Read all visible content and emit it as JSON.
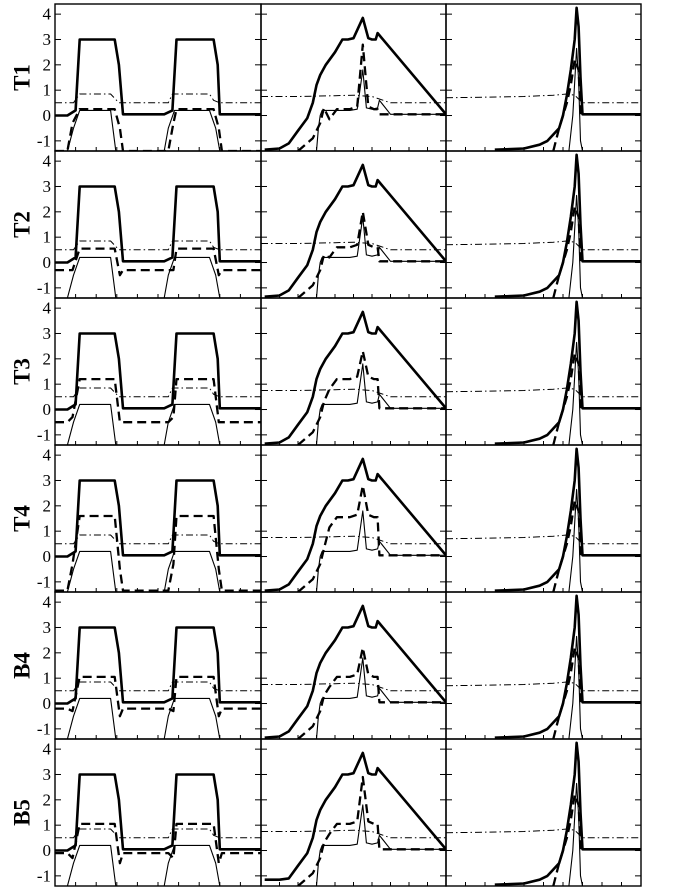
{
  "chart_data": {
    "type": "line",
    "title": "",
    "xlabel": "",
    "ylabel": "",
    "layout": {
      "rows": 6,
      "columns": 3
    },
    "row_labels": [
      "T1",
      "T2",
      "T3",
      "T4",
      "B4",
      "B5"
    ],
    "ylim": [
      -1.4,
      4.4
    ],
    "xlim": [
      0,
      100
    ],
    "y_ticks": [
      -1,
      0,
      1,
      2,
      3,
      4
    ],
    "y_tick_labels": [
      "-1",
      "0",
      "1",
      "2",
      "3",
      "4"
    ],
    "grid": false,
    "legend": "none",
    "series_styles": [
      {
        "key": "bold",
        "style": "solid",
        "weight": "thick",
        "color": "#000000"
      },
      {
        "key": "dashed",
        "style": "dashed",
        "weight": "thick",
        "color": "#000000"
      },
      {
        "key": "thin",
        "style": "solid",
        "weight": "thin",
        "color": "#000000"
      },
      {
        "key": "dashdot",
        "style": "dash-dot",
        "weight": "thin",
        "color": "#000000"
      }
    ],
    "columns": [
      {
        "description": "two rectangular pulses",
        "bold": {
          "x": [
            0,
            6,
            10,
            12,
            27,
            29,
            31,
            33,
            35,
            53,
            57,
            59,
            75,
            77,
            79,
            80,
            100
          ],
          "y": [
            0,
            0,
            0.2,
            3,
            3,
            3,
            2,
            0.05,
            0.05,
            0.05,
            0.2,
            3,
            3,
            3,
            2,
            0.05,
            0.05
          ]
        },
        "thin": {
          "x": [
            6,
            9,
            12,
            27,
            29.5,
            53,
            55,
            58,
            75,
            78,
            80
          ],
          "y": [
            -1.4,
            -0.5,
            0.2,
            0.2,
            -1.4,
            -1.4,
            -0.5,
            0.2,
            0.2,
            -0.5,
            -1.4
          ]
        },
        "dashdot": {
          "x": [
            0,
            9,
            12,
            27,
            31,
            33,
            53,
            55,
            57,
            75,
            77,
            80,
            100
          ],
          "y": [
            0.5,
            0.5,
            0.85,
            0.85,
            0.5,
            0.5,
            0.5,
            0.5,
            0.85,
            0.85,
            0.6,
            0.5,
            0.5
          ]
        },
        "dashed_plateau": [
          0.25,
          0.55,
          1.2,
          1.6,
          1.05,
          1.05
        ],
        "dashed_floor": [
          -1.4,
          -0.3,
          -0.5,
          -1.35,
          -0.2,
          -0.1
        ]
      },
      {
        "description": "build-up with central spike",
        "bold": {
          "x": [
            2,
            10,
            15,
            20,
            25,
            28,
            30,
            32,
            35,
            40,
            44,
            46,
            47,
            50,
            55,
            58,
            60,
            62,
            63,
            100
          ],
          "y": [
            -1.35,
            -1.3,
            -1.1,
            -0.6,
            -0.1,
            0.5,
            1.2,
            1.6,
            2,
            2.5,
            3,
            3,
            3,
            3.05,
            3.85,
            3.05,
            3,
            3,
            3.25,
            0.05
          ]
        },
        "thin": {
          "x": [
            30,
            31,
            32,
            33,
            40,
            48,
            52,
            55,
            57,
            60,
            63,
            64,
            70,
            100
          ],
          "y": [
            -1.4,
            -0.5,
            0,
            0.2,
            0.2,
            0.2,
            0.25,
            1.8,
            0.3,
            0.25,
            0.3,
            0.6,
            0.05,
            0.05
          ]
        },
        "dashdot": {
          "x": [
            0,
            20,
            40,
            50,
            60,
            62,
            64,
            70,
            100
          ],
          "y": [
            0.75,
            0.75,
            0.78,
            0.8,
            0.75,
            0.7,
            0.65,
            0.5,
            0.5
          ]
        },
        "dashed_peak": [
          2.8,
          2.0,
          2.3,
          2.8,
          2.2,
          2.9
        ],
        "dashed_plateau": [
          0.25,
          0.6,
          1.2,
          1.55,
          1.05,
          1.05
        ]
      },
      {
        "description": "narrow tall peak near right edge",
        "bold": {
          "x": [
            25,
            40,
            48,
            52,
            58,
            60,
            62,
            64,
            66,
            67,
            68,
            69,
            70,
            100
          ],
          "y": [
            -1.35,
            -1.3,
            -1.15,
            -1,
            -0.5,
            0,
            0.8,
            1.8,
            3,
            4.25,
            3.5,
            1.5,
            0.05,
            0.05
          ]
        },
        "dashed": {
          "x": [
            55,
            58,
            62,
            64,
            66,
            68,
            69,
            100
          ],
          "y": [
            -1.4,
            -0.5,
            0.5,
            1.2,
            2.2,
            1.8,
            0.05,
            0.05
          ]
        },
        "thin": {
          "x": [
            63,
            65,
            67,
            68,
            69,
            70
          ],
          "y": [
            -1.4,
            0,
            2.65,
            1.4,
            -1,
            -1.4
          ]
        },
        "dashdot": {
          "x": [
            0,
            40,
            55,
            62,
            66,
            70,
            100
          ],
          "y": [
            0.7,
            0.75,
            0.8,
            0.85,
            0.8,
            0.5,
            0.5
          ]
        }
      }
    ]
  }
}
